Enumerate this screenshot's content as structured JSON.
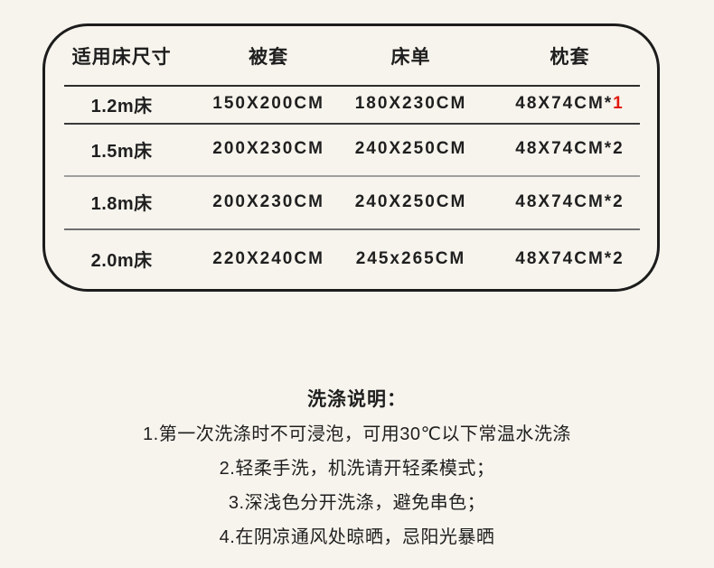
{
  "page": {
    "background_color": "#f7f4ed",
    "text_color": "#1f1f1f",
    "accent_red": "#e2180c",
    "table_border_color": "#1c1c1c"
  },
  "size_table": {
    "headers": [
      "适用床尺寸",
      "被套",
      "床单",
      "枕套"
    ],
    "rows": [
      {
        "bed_size": "1.2m床",
        "duvet_cover": "150X200CM",
        "bed_sheet": "180X230CM",
        "pillowcase": "48X74CM*",
        "pillowcase_qty": "1"
      },
      {
        "bed_size": "1.5m床",
        "duvet_cover": "200X230CM",
        "bed_sheet": "240X250CM",
        "pillowcase": "48X74CM*",
        "pillowcase_qty": "2"
      },
      {
        "bed_size": "1.8m床",
        "duvet_cover": "200X230CM",
        "bed_sheet": "240X250CM",
        "pillowcase": "48X74CM*",
        "pillowcase_qty": "2"
      },
      {
        "bed_size": "2.0m床",
        "duvet_cover": "220X240CM",
        "bed_sheet": "245x265CM",
        "pillowcase": "48X74CM*",
        "pillowcase_qty": "2"
      }
    ]
  },
  "washing_instructions": {
    "title": "洗涤说明：",
    "lines": [
      "1.第一次洗涤时不可浸泡，可用30℃以下常温水洗涤",
      "2.轻柔手洗，机洗请开轻柔模式；",
      "3.深浅色分开洗涤，避免串色；",
      "4.在阴凉通风处晾晒，忌阳光暴晒"
    ]
  }
}
